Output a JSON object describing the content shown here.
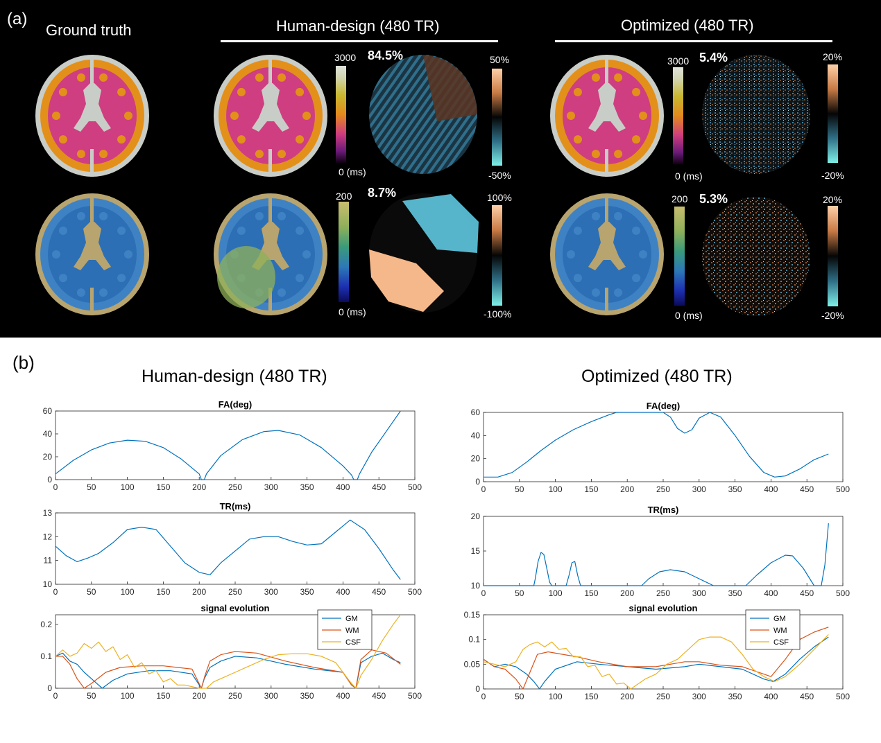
{
  "panel_a": {
    "label": "(a)",
    "ground_truth_title": "Ground truth",
    "human_title": "Human-design (480 TR)",
    "optimized_title": "Optimized (480 TR)",
    "t1_cbar": {
      "max": "3000",
      "min": "0 (ms)"
    },
    "t2_cbar": {
      "max": "200",
      "min": "0 (ms)"
    },
    "human": {
      "t1_error": "84.5%",
      "t1_err_max": "50%",
      "t1_err_min": "-50%",
      "t2_error": "8.7%",
      "t2_err_max": "100%",
      "t2_err_min": "-100%"
    },
    "optimized": {
      "t1_error": "5.4%",
      "t1_err_max": "20%",
      "t1_err_min": "-20%",
      "t2_error": "5.3%",
      "t2_err_max": "20%",
      "t2_err_min": "-20%"
    },
    "colors": {
      "t1_csf": "#c9cdc7",
      "t1_gm": "#e3901a",
      "t1_wm": "#cf3e80",
      "t2_csf": "#b8a46e",
      "t2_wm": "#2d6fb4",
      "t2_gm": "#3f82c4",
      "err_pos": "#f5b88a",
      "err_neg": "#5ec8e0"
    }
  },
  "panel_b": {
    "label": "(b)",
    "human_title": "Human-design (480 TR)",
    "optimized_title": "Optimized (480 TR)"
  },
  "chart_data": [
    {
      "id": "h_fa",
      "type": "line",
      "title": "FA(deg)",
      "xlim": [
        0,
        500
      ],
      "ylim": [
        0,
        60
      ],
      "xticks": [
        0,
        50,
        100,
        150,
        200,
        250,
        300,
        350,
        400,
        450,
        500
      ],
      "yticks": [
        0,
        20,
        40,
        60
      ],
      "series": [
        {
          "name": "FA",
          "color": "#0072BD",
          "x": [
            0,
            25,
            50,
            75,
            100,
            125,
            150,
            175,
            200,
            203,
            207,
            210,
            230,
            260,
            290,
            310,
            340,
            370,
            400,
            412,
            415,
            420,
            423,
            440,
            460,
            480
          ],
          "y": [
            5,
            17,
            26,
            32,
            34.5,
            33.5,
            28,
            18,
            5,
            0,
            0,
            5,
            21,
            35,
            42,
            43,
            39,
            28,
            12,
            4,
            0,
            0,
            5,
            24,
            42,
            60
          ]
        }
      ]
    },
    {
      "id": "h_tr",
      "type": "line",
      "title": "TR(ms)",
      "xlim": [
        0,
        500
      ],
      "ylim": [
        10,
        13
      ],
      "xticks": [
        0,
        50,
        100,
        150,
        200,
        250,
        300,
        350,
        400,
        450,
        500
      ],
      "yticks": [
        10,
        11,
        12,
        13
      ],
      "series": [
        {
          "name": "TR",
          "color": "#0072BD",
          "x": [
            0,
            15,
            30,
            45,
            60,
            80,
            100,
            120,
            140,
            160,
            180,
            200,
            215,
            230,
            250,
            270,
            290,
            310,
            330,
            350,
            370,
            390,
            410,
            430,
            450,
            470,
            480
          ],
          "y": [
            11.6,
            11.2,
            10.95,
            11.1,
            11.3,
            11.75,
            12.3,
            12.4,
            12.3,
            11.6,
            10.9,
            10.5,
            10.4,
            10.9,
            11.4,
            11.9,
            12.0,
            12.0,
            11.8,
            11.65,
            11.7,
            12.2,
            12.7,
            12.3,
            11.5,
            10.6,
            10.2
          ]
        }
      ]
    },
    {
      "id": "h_sig",
      "type": "line",
      "title": "signal evolution",
      "xlim": [
        0,
        500
      ],
      "ylim": [
        0,
        0.23
      ],
      "xticks": [
        0,
        50,
        100,
        150,
        200,
        250,
        300,
        350,
        400,
        450,
        500
      ],
      "yticks": [
        0,
        0.1,
        0.2
      ],
      "legend": "top-right",
      "series": [
        {
          "name": "GM",
          "color": "#0072BD",
          "x": [
            0,
            10,
            20,
            30,
            40,
            55,
            65,
            80,
            100,
            130,
            160,
            190,
            203,
            207,
            215,
            230,
            250,
            280,
            320,
            360,
            400,
            412,
            418,
            425,
            440,
            455,
            470,
            480
          ],
          "y": [
            0.1,
            0.11,
            0.085,
            0.075,
            0.05,
            0.02,
            0.0,
            0.025,
            0.045,
            0.055,
            0.055,
            0.045,
            0.0,
            0.03,
            0.065,
            0.085,
            0.1,
            0.095,
            0.075,
            0.06,
            0.05,
            0.01,
            0.0,
            0.08,
            0.1,
            0.11,
            0.09,
            0.08
          ]
        },
        {
          "name": "WM",
          "color": "#D95319",
          "x": [
            0,
            10,
            20,
            30,
            40,
            50,
            70,
            90,
            120,
            150,
            190,
            203,
            208,
            215,
            230,
            250,
            280,
            320,
            360,
            400,
            412,
            418,
            425,
            440,
            460,
            480
          ],
          "y": [
            0.1,
            0.1,
            0.075,
            0.03,
            0.0,
            0.015,
            0.05,
            0.065,
            0.07,
            0.07,
            0.06,
            0.0,
            0.04,
            0.085,
            0.105,
            0.115,
            0.11,
            0.085,
            0.065,
            0.05,
            0.01,
            0.0,
            0.09,
            0.12,
            0.11,
            0.075
          ]
        },
        {
          "name": "CSF",
          "color": "#EDB120",
          "x": [
            0,
            10,
            20,
            30,
            40,
            50,
            60,
            70,
            80,
            90,
            100,
            110,
            120,
            130,
            140,
            150,
            160,
            170,
            180,
            190,
            200,
            210,
            220,
            230,
            250,
            270,
            290,
            310,
            330,
            350,
            370,
            390,
            400,
            410,
            418,
            425,
            440,
            455,
            470,
            480
          ],
          "y": [
            0.1,
            0.12,
            0.1,
            0.11,
            0.14,
            0.125,
            0.145,
            0.115,
            0.13,
            0.09,
            0.105,
            0.065,
            0.08,
            0.045,
            0.055,
            0.02,
            0.03,
            0.01,
            0.01,
            0.005,
            0.0,
            0.0,
            0.02,
            0.03,
            0.05,
            0.07,
            0.09,
            0.105,
            0.108,
            0.108,
            0.1,
            0.08,
            0.05,
            0.02,
            0.0,
            0.04,
            0.09,
            0.15,
            0.2,
            0.23
          ]
        }
      ]
    },
    {
      "id": "o_fa",
      "type": "line",
      "title": "FA(deg)",
      "xlim": [
        0,
        500
      ],
      "ylim": [
        0,
        60
      ],
      "xticks": [
        0,
        50,
        100,
        150,
        200,
        250,
        300,
        350,
        400,
        450,
        500
      ],
      "yticks": [
        0,
        20,
        40,
        60
      ],
      "series": [
        {
          "name": "FA",
          "color": "#0072BD",
          "x": [
            0,
            20,
            40,
            60,
            80,
            100,
            125,
            150,
            175,
            185,
            200,
            250,
            260,
            270,
            280,
            290,
            300,
            315,
            330,
            350,
            370,
            390,
            405,
            420,
            440,
            460,
            480
          ],
          "y": [
            4,
            4,
            8,
            17,
            27,
            36,
            45,
            52,
            58,
            60,
            60,
            60,
            56,
            46,
            42,
            45,
            55,
            60,
            56,
            40,
            22,
            8,
            4,
            5,
            11,
            19,
            24
          ]
        }
      ]
    },
    {
      "id": "o_tr",
      "type": "line",
      "title": "TR(ms)",
      "xlim": [
        0,
        500
      ],
      "ylim": [
        10,
        20
      ],
      "xticks": [
        0,
        50,
        100,
        150,
        200,
        250,
        300,
        350,
        400,
        450,
        500
      ],
      "yticks": [
        10,
        15,
        20
      ],
      "series": [
        {
          "name": "TR",
          "color": "#0072BD",
          "x": [
            0,
            70,
            72,
            76,
            80,
            84,
            88,
            92,
            95,
            115,
            119,
            123,
            127,
            131,
            135,
            220,
            230,
            245,
            260,
            280,
            300,
            320,
            365,
            380,
            400,
            420,
            430,
            445,
            460,
            470,
            475,
            480
          ],
          "y": [
            10,
            10,
            11,
            13.5,
            14.8,
            14.5,
            12.5,
            10.5,
            10,
            10,
            11.5,
            13.3,
            13.5,
            11.5,
            10,
            10,
            11,
            12,
            12.3,
            12,
            11,
            10,
            10,
            11.5,
            13.3,
            14.4,
            14.3,
            12.5,
            10,
            10,
            13,
            19
          ]
        }
      ]
    },
    {
      "id": "o_sig",
      "type": "line",
      "title": "signal evolution",
      "xlim": [
        0,
        500
      ],
      "ylim": [
        0,
        0.15
      ],
      "xticks": [
        0,
        50,
        100,
        150,
        200,
        250,
        300,
        350,
        400,
        450,
        500
      ],
      "yticks": [
        0,
        0.05,
        0.1,
        0.15
      ],
      "legend": "top-right",
      "series": [
        {
          "name": "GM",
          "color": "#0072BD",
          "x": [
            0,
            15,
            30,
            45,
            60,
            70,
            78,
            85,
            100,
            130,
            160,
            200,
            240,
            280,
            300,
            330,
            360,
            390,
            403,
            420,
            440,
            460,
            480
          ],
          "y": [
            0.06,
            0.045,
            0.05,
            0.045,
            0.03,
            0.015,
            0.0,
            0.015,
            0.04,
            0.055,
            0.05,
            0.045,
            0.04,
            0.045,
            0.05,
            0.045,
            0.04,
            0.02,
            0.015,
            0.03,
            0.06,
            0.085,
            0.105
          ]
        },
        {
          "name": "WM",
          "color": "#D95319",
          "x": [
            0,
            15,
            30,
            45,
            55,
            65,
            75,
            90,
            110,
            130,
            160,
            200,
            240,
            280,
            300,
            330,
            360,
            390,
            400,
            420,
            440,
            460,
            480
          ],
          "y": [
            0.06,
            0.045,
            0.04,
            0.02,
            0.0,
            0.035,
            0.07,
            0.075,
            0.07,
            0.065,
            0.055,
            0.045,
            0.045,
            0.055,
            0.055,
            0.048,
            0.045,
            0.03,
            0.025,
            0.06,
            0.1,
            0.115,
            0.125
          ]
        },
        {
          "name": "CSF",
          "color": "#EDB120",
          "x": [
            0,
            15,
            30,
            45,
            55,
            65,
            75,
            85,
            95,
            105,
            115,
            125,
            135,
            145,
            155,
            165,
            175,
            185,
            195,
            205,
            215,
            225,
            240,
            255,
            270,
            285,
            300,
            315,
            330,
            345,
            360,
            375,
            390,
            405,
            420,
            440,
            460,
            480
          ],
          "y": [
            0.055,
            0.05,
            0.045,
            0.055,
            0.08,
            0.09,
            0.095,
            0.085,
            0.095,
            0.08,
            0.082,
            0.065,
            0.065,
            0.045,
            0.048,
            0.025,
            0.03,
            0.01,
            0.012,
            0.0,
            0.01,
            0.02,
            0.03,
            0.05,
            0.06,
            0.08,
            0.1,
            0.105,
            0.105,
            0.095,
            0.07,
            0.04,
            0.025,
            0.015,
            0.025,
            0.05,
            0.08,
            0.11
          ]
        }
      ]
    }
  ]
}
